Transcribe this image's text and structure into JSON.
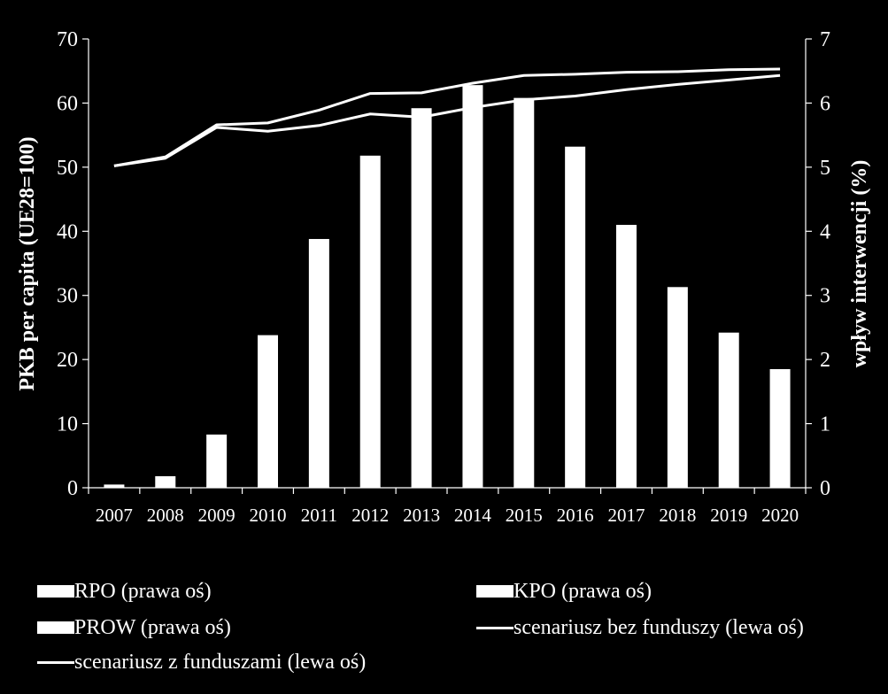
{
  "chart_data": {
    "type": "bar",
    "categories": [
      "2007",
      "2008",
      "2009",
      "2010",
      "2011",
      "2012",
      "2013",
      "2014",
      "2015",
      "2016",
      "2017",
      "2018",
      "2019",
      "2020"
    ],
    "left_axis": {
      "label": "PKB per capita (UE28=100)",
      "ylim": [
        0,
        70
      ],
      "ticks": [
        0,
        10,
        20,
        30,
        40,
        50,
        60,
        70
      ]
    },
    "right_axis": {
      "label": "wpływ interwencji (%)",
      "ylim": [
        0,
        7
      ],
      "ticks": [
        0,
        1,
        2,
        3,
        4,
        5,
        6,
        7
      ]
    },
    "series": [
      {
        "name": "RPO (prawa oś)",
        "kind": "bar",
        "axis": "right",
        "values": [
          0.05,
          0.18,
          0.83,
          2.38,
          3.88,
          5.18,
          5.92,
          6.28,
          6.08,
          5.32,
          4.1,
          3.13,
          2.42,
          1.85
        ]
      },
      {
        "name": "KPO (prawa oś)",
        "kind": "bar",
        "axis": "right",
        "values": [
          0,
          0,
          0,
          0,
          0,
          0,
          0,
          0,
          0,
          0,
          0,
          0,
          0,
          0
        ]
      },
      {
        "name": "PROW (prawa oś)",
        "kind": "bar",
        "axis": "right",
        "values": [
          0,
          0,
          0,
          0,
          0,
          0,
          0,
          0,
          0,
          0,
          0,
          0,
          0,
          0
        ]
      },
      {
        "name": "scenariusz bez funduszy (lewa oś)",
        "kind": "line",
        "axis": "left",
        "values": [
          50.2,
          51.4,
          56.2,
          55.6,
          56.5,
          58.3,
          57.8,
          59.3,
          60.5,
          61.1,
          62.1,
          62.9,
          63.6,
          64.3
        ]
      },
      {
        "name": "scenariusz z funduszami (lewa oś)",
        "kind": "line",
        "axis": "left",
        "values": [
          50.2,
          51.6,
          56.6,
          56.9,
          58.9,
          61.5,
          61.6,
          63.1,
          64.3,
          64.5,
          64.8,
          64.9,
          65.2,
          65.3
        ]
      }
    ]
  },
  "colors": {
    "background": "#000000",
    "foreground": "#ffffff"
  }
}
